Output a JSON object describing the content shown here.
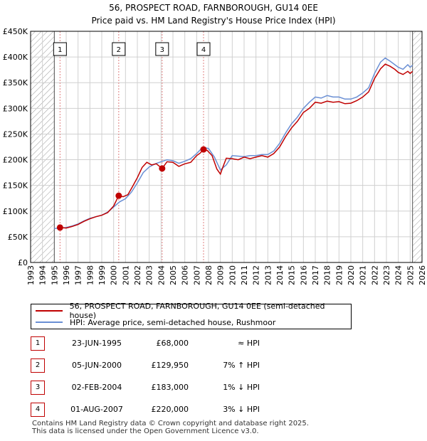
{
  "colors": {
    "price_line": "#c00000",
    "hpi_line": "#6a8fd4",
    "grid": "#d0d0d0",
    "hatch": "#9a9a9a",
    "marker_line": "#e08080"
  },
  "title_line1": "56, PROSPECT ROAD, FARNBOROUGH, GU14 0EE",
  "title_line2": "Price paid vs. HM Land Registry's House Price Index (HPI)",
  "legend": {
    "price_label": "56, PROSPECT ROAD, FARNBOROUGH, GU14 0EE (semi-detached house)",
    "hpi_label": "HPI: Average price, semi-detached house, Rushmoor"
  },
  "sales": [
    {
      "num": "1",
      "date": "23-JUN-1995",
      "price": "£68,000",
      "hpi": "≈ HPI"
    },
    {
      "num": "2",
      "date": "05-JUN-2000",
      "price": "£129,950",
      "hpi": "7% ↑ HPI"
    },
    {
      "num": "3",
      "date": "02-FEB-2004",
      "price": "£183,000",
      "hpi": "1% ↓ HPI"
    },
    {
      "num": "4",
      "date": "01-AUG-2007",
      "price": "£220,000",
      "hpi": "3% ↓ HPI"
    }
  ],
  "footer_line1": "Contains HM Land Registry data © Crown copyright and database right 2025.",
  "footer_line2": "This data is licensed under the Open Government Licence v3.0.",
  "chart_data": {
    "type": "line",
    "title": "56, PROSPECT ROAD, FARNBOROUGH, GU14 0EE",
    "subtitle": "Price paid vs. HM Land Registry's House Price Index (HPI)",
    "xlabel": "",
    "ylabel": "",
    "xlim": [
      1993,
      2026
    ],
    "ylim": [
      0,
      450000
    ],
    "grid": true,
    "legend_position": "bottom",
    "x_ticks": [
      1993,
      1994,
      1995,
      1996,
      1997,
      1998,
      1999,
      2000,
      2001,
      2002,
      2003,
      2004,
      2005,
      2006,
      2007,
      2008,
      2009,
      2010,
      2011,
      2012,
      2013,
      2014,
      2015,
      2016,
      2017,
      2018,
      2019,
      2020,
      2021,
      2022,
      2023,
      2024,
      2025,
      2026
    ],
    "y_ticks": [
      0,
      50000,
      100000,
      150000,
      200000,
      250000,
      300000,
      350000,
      400000,
      450000
    ],
    "y_tick_labels": [
      "£0",
      "£50K",
      "£100K",
      "£150K",
      "£200K",
      "£250K",
      "£300K",
      "£350K",
      "£400K",
      "£450K"
    ],
    "hatched_before": 1995.0,
    "hatched_after": 2025.2,
    "series": [
      {
        "name": "56, PROSPECT ROAD, FARNBOROUGH, GU14 0EE (semi-detached house)",
        "x": [
          1995.48,
          1996.0,
          1996.5,
          1997.0,
          1997.5,
          1998.0,
          1998.5,
          1999.0,
          1999.5,
          2000.0,
          2000.43,
          2000.8,
          2001.2,
          2001.6,
          2002.0,
          2002.4,
          2002.8,
          2003.2,
          2003.6,
          2004.09,
          2004.5,
          2005.0,
          2005.5,
          2006.0,
          2006.5,
          2007.0,
          2007.3,
          2007.58,
          2007.9,
          2008.3,
          2008.7,
          2009.0,
          2009.2,
          2009.5,
          2010.0,
          2010.5,
          2011.0,
          2011.5,
          2012.0,
          2012.5,
          2013.0,
          2013.5,
          2014.0,
          2014.5,
          2015.0,
          2015.5,
          2016.0,
          2016.5,
          2017.0,
          2017.5,
          2018.0,
          2018.5,
          2019.0,
          2019.5,
          2020.0,
          2020.5,
          2021.0,
          2021.5,
          2022.0,
          2022.5,
          2022.9,
          2023.3,
          2023.7,
          2024.0,
          2024.4,
          2024.8,
          2025.0,
          2025.2
        ],
        "values": [
          68000,
          67000,
          70000,
          74000,
          80000,
          85000,
          89000,
          92000,
          97000,
          110000,
          129950,
          128000,
          132000,
          148000,
          165000,
          185000,
          195000,
          190000,
          192000,
          183000,
          196000,
          195000,
          187000,
          192000,
          195000,
          208000,
          213000,
          220000,
          218000,
          208000,
          182000,
          172000,
          185000,
          203000,
          202000,
          200000,
          205000,
          202000,
          205000,
          208000,
          205000,
          212000,
          225000,
          245000,
          262000,
          275000,
          292000,
          300000,
          312000,
          310000,
          314000,
          312000,
          313000,
          309000,
          310000,
          315000,
          322000,
          332000,
          358000,
          377000,
          386000,
          382000,
          376000,
          370000,
          366000,
          372000,
          368000,
          372000
        ]
      },
      {
        "name": "HPI: Average price, semi-detached house, Rushmoor",
        "x": [
          1995.0,
          1995.5,
          1996.0,
          1996.5,
          1997.0,
          1997.5,
          1998.0,
          1998.5,
          1999.0,
          1999.5,
          2000.0,
          2000.5,
          2001.0,
          2001.5,
          2002.0,
          2002.5,
          2003.0,
          2003.5,
          2004.0,
          2004.5,
          2005.0,
          2005.5,
          2006.0,
          2006.5,
          2007.0,
          2007.5,
          2008.0,
          2008.5,
          2009.0,
          2009.5,
          2010.0,
          2010.5,
          2011.0,
          2011.5,
          2012.0,
          2012.5,
          2013.0,
          2013.5,
          2014.0,
          2014.5,
          2015.0,
          2015.5,
          2016.0,
          2016.5,
          2017.0,
          2017.5,
          2018.0,
          2018.5,
          2019.0,
          2019.5,
          2020.0,
          2020.5,
          2021.0,
          2021.5,
          2022.0,
          2022.5,
          2022.9,
          2023.3,
          2023.7,
          2024.0,
          2024.4,
          2024.8,
          2025.0,
          2025.2
        ],
        "values": [
          66000,
          67000,
          68000,
          71000,
          75000,
          81000,
          86000,
          89000,
          92000,
          98000,
          108000,
          118000,
          124000,
          137000,
          155000,
          175000,
          186000,
          192000,
          196000,
          200000,
          198000,
          193000,
          197000,
          202000,
          212000,
          224000,
          222000,
          205000,
          180000,
          190000,
          208000,
          207000,
          206000,
          208000,
          208000,
          210000,
          210000,
          217000,
          232000,
          252000,
          270000,
          283000,
          300000,
          312000,
          322000,
          320000,
          325000,
          322000,
          322000,
          318000,
          318000,
          322000,
          330000,
          340000,
          368000,
          390000,
          398000,
          392000,
          385000,
          380000,
          376000,
          385000,
          380000,
          384000
        ]
      }
    ],
    "sale_markers": [
      {
        "label": "1",
        "x": 1995.48,
        "value": 68000
      },
      {
        "label": "2",
        "x": 2000.43,
        "value": 129950
      },
      {
        "label": "3",
        "x": 2004.09,
        "value": 183000
      },
      {
        "label": "4",
        "x": 2007.58,
        "value": 220000
      }
    ]
  }
}
